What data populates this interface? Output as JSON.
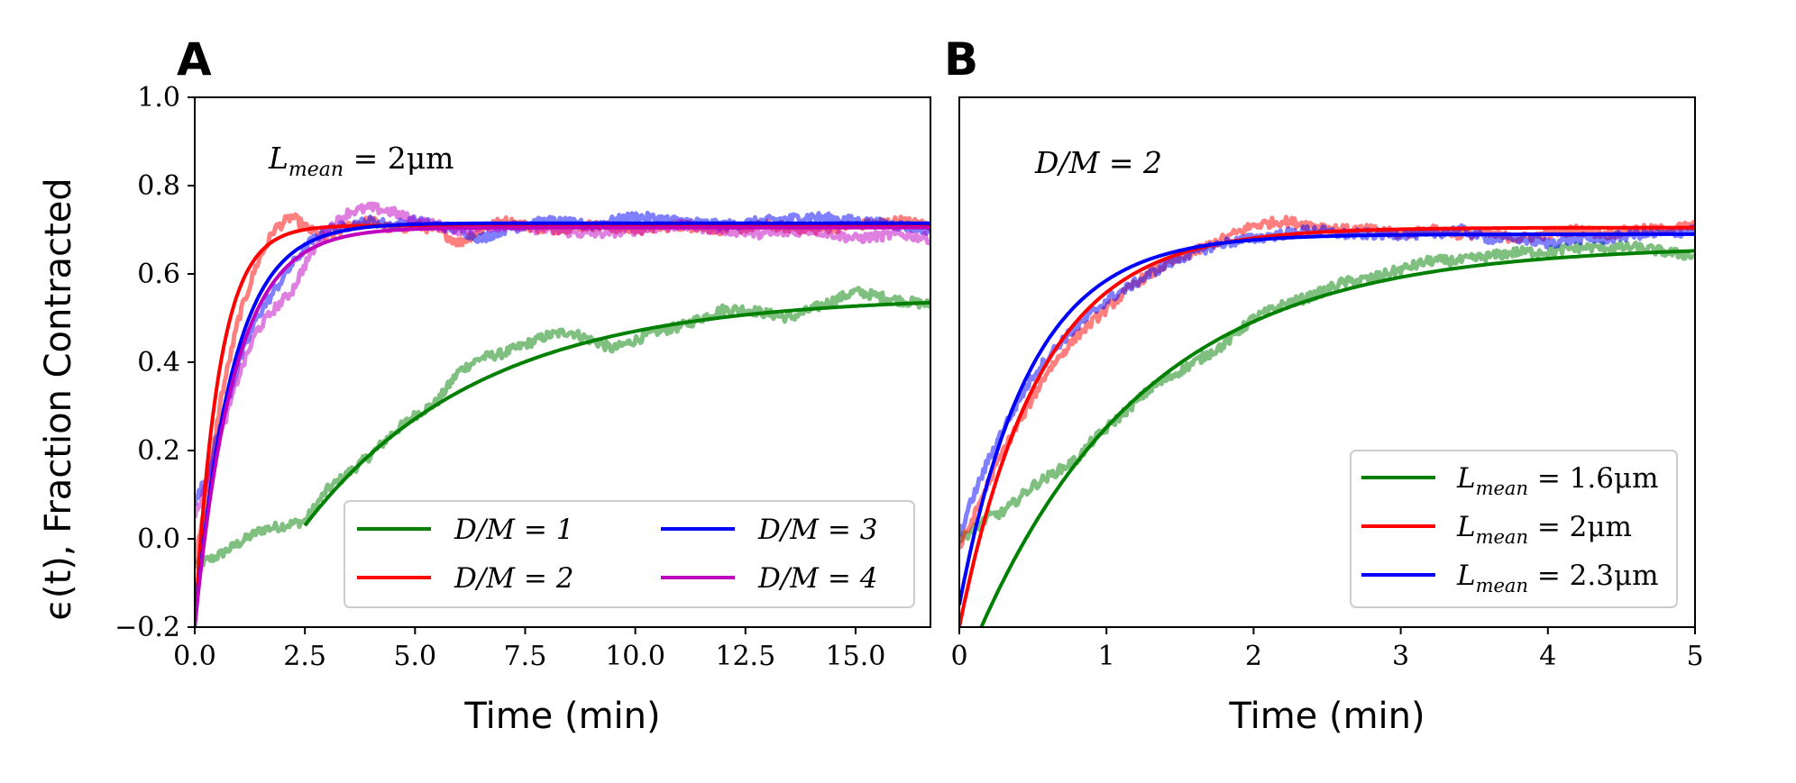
{
  "ylabel": "ϵ(t), Fraction Contracted",
  "chart_data": [
    {
      "panel": "A",
      "type": "line",
      "xlabel": "Time (min)",
      "xlim": [
        0,
        16.7
      ],
      "ylim": [
        -0.2,
        1.0
      ],
      "xticks": [
        "0.0",
        "2.5",
        "5.0",
        "7.5",
        "10.0",
        "12.5",
        "15.0"
      ],
      "xtick_values": [
        0,
        2.5,
        5,
        7.5,
        10,
        12.5,
        15
      ],
      "yticks": [
        "−0.2",
        "0.0",
        "0.2",
        "0.4",
        "0.6",
        "0.8",
        "1.0"
      ],
      "ytick_values": [
        -0.2,
        0,
        0.2,
        0.4,
        0.6,
        0.8,
        1.0
      ],
      "annotation": "L_mean = 2μm",
      "annotation_main": "L",
      "annotation_sub": "mean",
      "annotation_rest": " = 2μm",
      "legend_position": "lower-right",
      "legend_columns": 2,
      "series": [
        {
          "name": "D/M = 1",
          "color": "#008000",
          "fit": {
            "start": 2.5,
            "y0": 0.03,
            "plateau": 0.55,
            "tau": 4.0
          },
          "data_points": [
            [
              0,
              -0.06
            ],
            [
              0.5,
              -0.04
            ],
            [
              1.0,
              -0.01
            ],
            [
              1.5,
              0.02
            ],
            [
              2.0,
              0.03
            ],
            [
              2.5,
              0.04
            ],
            [
              3.0,
              0.11
            ],
            [
              3.5,
              0.15
            ],
            [
              4.0,
              0.19
            ],
            [
              4.5,
              0.24
            ],
            [
              5.0,
              0.28
            ],
            [
              5.5,
              0.31
            ],
            [
              6.0,
              0.38
            ],
            [
              6.5,
              0.41
            ],
            [
              7.0,
              0.42
            ],
            [
              7.5,
              0.44
            ],
            [
              8.0,
              0.46
            ],
            [
              8.5,
              0.47
            ],
            [
              9.0,
              0.45
            ],
            [
              9.5,
              0.43
            ],
            [
              10.0,
              0.45
            ],
            [
              10.5,
              0.47
            ],
            [
              11.0,
              0.48
            ],
            [
              11.5,
              0.5
            ],
            [
              12.0,
              0.52
            ],
            [
              12.5,
              0.52
            ],
            [
              13.0,
              0.51
            ],
            [
              13.5,
              0.5
            ],
            [
              14.0,
              0.52
            ],
            [
              14.5,
              0.54
            ],
            [
              15.0,
              0.56
            ],
            [
              15.5,
              0.55
            ],
            [
              16.0,
              0.54
            ],
            [
              16.7,
              0.53
            ]
          ]
        },
        {
          "name": "D/M = 2",
          "color": "#ff0000",
          "fit": {
            "start": 0,
            "y0": -0.2,
            "plateau": 0.71,
            "tau": 0.55
          },
          "data_points": [
            [
              0,
              -0.05
            ],
            [
              0.3,
              0.12
            ],
            [
              0.6,
              0.32
            ],
            [
              1.0,
              0.5
            ],
            [
              1.4,
              0.62
            ],
            [
              1.8,
              0.7
            ],
            [
              2.2,
              0.73
            ],
            [
              2.6,
              0.7
            ],
            [
              3.0,
              0.68
            ],
            [
              3.5,
              0.71
            ],
            [
              4.0,
              0.72
            ],
            [
              4.5,
              0.7
            ],
            [
              5.0,
              0.71
            ],
            [
              5.5,
              0.7
            ],
            [
              6.0,
              0.67
            ],
            [
              6.5,
              0.7
            ],
            [
              7.0,
              0.72
            ],
            [
              7.5,
              0.71
            ],
            [
              8.0,
              0.7
            ],
            [
              9.0,
              0.71
            ],
            [
              10.0,
              0.7
            ],
            [
              11.0,
              0.71
            ],
            [
              12.0,
              0.7
            ],
            [
              13.0,
              0.71
            ],
            [
              14.0,
              0.7
            ],
            [
              15.0,
              0.71
            ],
            [
              16.0,
              0.72
            ],
            [
              16.7,
              0.71
            ]
          ]
        },
        {
          "name": "D/M = 3",
          "color": "#0000ff",
          "fit": {
            "start": 0,
            "y0": -0.2,
            "plateau": 0.715,
            "tau": 0.85
          },
          "data_points": [
            [
              0,
              0.08
            ],
            [
              0.3,
              0.15
            ],
            [
              0.6,
              0.26
            ],
            [
              1.0,
              0.4
            ],
            [
              1.4,
              0.5
            ],
            [
              1.8,
              0.56
            ],
            [
              2.2,
              0.62
            ],
            [
              2.6,
              0.67
            ],
            [
              3.0,
              0.7
            ],
            [
              3.5,
              0.71
            ],
            [
              4.0,
              0.72
            ],
            [
              4.5,
              0.71
            ],
            [
              5.0,
              0.72
            ],
            [
              6.0,
              0.7
            ],
            [
              6.5,
              0.68
            ],
            [
              7.0,
              0.7
            ],
            [
              7.5,
              0.71
            ],
            [
              8.0,
              0.72
            ],
            [
              9.0,
              0.71
            ],
            [
              10.0,
              0.73
            ],
            [
              11.0,
              0.72
            ],
            [
              12.0,
              0.71
            ],
            [
              13.0,
              0.72
            ],
            [
              14.0,
              0.73
            ],
            [
              15.0,
              0.72
            ],
            [
              16.0,
              0.71
            ],
            [
              16.7,
              0.7
            ]
          ]
        },
        {
          "name": "D/M = 4",
          "color": "#bf00bf",
          "fit": {
            "start": 0,
            "y0": -0.2,
            "plateau": 0.705,
            "tau": 0.9
          },
          "data_points": [
            [
              0,
              0.05
            ],
            [
              0.3,
              0.13
            ],
            [
              0.6,
              0.24
            ],
            [
              1.0,
              0.37
            ],
            [
              1.4,
              0.47
            ],
            [
              1.8,
              0.52
            ],
            [
              2.2,
              0.56
            ],
            [
              2.6,
              0.64
            ],
            [
              3.0,
              0.7
            ],
            [
              3.5,
              0.74
            ],
            [
              4.0,
              0.75
            ],
            [
              4.5,
              0.74
            ],
            [
              5.0,
              0.72
            ],
            [
              5.5,
              0.71
            ],
            [
              6.0,
              0.7
            ],
            [
              7.0,
              0.71
            ],
            [
              8.0,
              0.7
            ],
            [
              9.0,
              0.69
            ],
            [
              10.0,
              0.7
            ],
            [
              11.0,
              0.71
            ],
            [
              12.0,
              0.7
            ],
            [
              13.0,
              0.69
            ],
            [
              14.0,
              0.7
            ],
            [
              15.0,
              0.68
            ],
            [
              16.0,
              0.69
            ],
            [
              16.7,
              0.68
            ]
          ]
        }
      ]
    },
    {
      "panel": "B",
      "type": "line",
      "xlabel": "Time (min)",
      "xlim": [
        0,
        5
      ],
      "ylim": [
        -0.2,
        1.0
      ],
      "xticks": [
        "0",
        "1",
        "2",
        "3",
        "4",
        "5"
      ],
      "xtick_values": [
        0,
        1,
        2,
        3,
        4,
        5
      ],
      "annotation": "D/M = 2",
      "legend_position": "lower-right",
      "legend_columns": 1,
      "series": [
        {
          "name": "L_mean = 1.6μm",
          "label_main": "L",
          "label_sub": "mean",
          "label_rest": " = 1.6μm",
          "color": "#008000",
          "fit": {
            "start": 0,
            "y0": -0.32,
            "plateau": 0.665,
            "tau": 1.15
          },
          "data_points": [
            [
              0,
              0.0
            ],
            [
              0.1,
              0.02
            ],
            [
              0.2,
              0.05
            ],
            [
              0.3,
              0.06
            ],
            [
              0.4,
              0.09
            ],
            [
              0.5,
              0.12
            ],
            [
              0.6,
              0.14
            ],
            [
              0.7,
              0.16
            ],
            [
              0.8,
              0.18
            ],
            [
              0.9,
              0.22
            ],
            [
              1.0,
              0.25
            ],
            [
              1.1,
              0.28
            ],
            [
              1.2,
              0.31
            ],
            [
              1.3,
              0.34
            ],
            [
              1.4,
              0.36
            ],
            [
              1.5,
              0.38
            ],
            [
              1.6,
              0.4
            ],
            [
              1.7,
              0.42
            ],
            [
              1.8,
              0.44
            ],
            [
              1.9,
              0.47
            ],
            [
              2.0,
              0.5
            ],
            [
              2.2,
              0.53
            ],
            [
              2.4,
              0.55
            ],
            [
              2.6,
              0.58
            ],
            [
              2.8,
              0.59
            ],
            [
              3.0,
              0.61
            ],
            [
              3.2,
              0.63
            ],
            [
              3.4,
              0.63
            ],
            [
              3.6,
              0.64
            ],
            [
              3.8,
              0.65
            ],
            [
              4.0,
              0.65
            ],
            [
              4.2,
              0.66
            ],
            [
              4.4,
              0.66
            ],
            [
              4.6,
              0.66
            ],
            [
              4.8,
              0.65
            ],
            [
              5.0,
              0.64
            ]
          ]
        },
        {
          "name": "L_mean = 2μm",
          "label_main": "L",
          "label_sub": "mean",
          "label_rest": " = 2μm",
          "color": "#ff0000",
          "fit": {
            "start": 0,
            "y0": -0.2,
            "plateau": 0.705,
            "tau": 0.55
          },
          "data_points": [
            [
              0,
              -0.02
            ],
            [
              0.1,
              0.05
            ],
            [
              0.2,
              0.13
            ],
            [
              0.3,
              0.2
            ],
            [
              0.4,
              0.26
            ],
            [
              0.5,
              0.32
            ],
            [
              0.6,
              0.38
            ],
            [
              0.7,
              0.42
            ],
            [
              0.8,
              0.46
            ],
            [
              0.9,
              0.49
            ],
            [
              1.0,
              0.52
            ],
            [
              1.2,
              0.58
            ],
            [
              1.4,
              0.62
            ],
            [
              1.6,
              0.65
            ],
            [
              1.8,
              0.68
            ],
            [
              2.0,
              0.71
            ],
            [
              2.2,
              0.72
            ],
            [
              2.4,
              0.71
            ],
            [
              2.6,
              0.7
            ],
            [
              2.8,
              0.7
            ],
            [
              3.0,
              0.69
            ],
            [
              3.2,
              0.7
            ],
            [
              3.4,
              0.69
            ],
            [
              3.6,
              0.69
            ],
            [
              3.8,
              0.68
            ],
            [
              4.0,
              0.69
            ],
            [
              4.2,
              0.7
            ],
            [
              4.4,
              0.69
            ],
            [
              4.6,
              0.7
            ],
            [
              4.8,
              0.7
            ],
            [
              5.0,
              0.71
            ]
          ]
        },
        {
          "name": "L_mean = 2.3μm",
          "label_main": "L",
          "label_sub": "mean",
          "label_rest": " = 2.3μm",
          "color": "#0000ff",
          "fit": {
            "start": 0,
            "y0": -0.15,
            "plateau": 0.69,
            "tau": 0.48
          },
          "data_points": [
            [
              0,
              0.01
            ],
            [
              0.1,
              0.1
            ],
            [
              0.2,
              0.18
            ],
            [
              0.3,
              0.25
            ],
            [
              0.4,
              0.31
            ],
            [
              0.5,
              0.37
            ],
            [
              0.6,
              0.41
            ],
            [
              0.7,
              0.45
            ],
            [
              0.8,
              0.48
            ],
            [
              0.9,
              0.51
            ],
            [
              1.0,
              0.54
            ],
            [
              1.2,
              0.58
            ],
            [
              1.4,
              0.62
            ],
            [
              1.6,
              0.65
            ],
            [
              1.8,
              0.67
            ],
            [
              2.0,
              0.68
            ],
            [
              2.2,
              0.69
            ],
            [
              2.4,
              0.7
            ],
            [
              2.6,
              0.69
            ],
            [
              2.8,
              0.69
            ],
            [
              3.0,
              0.69
            ],
            [
              3.2,
              0.69
            ],
            [
              3.4,
              0.7
            ],
            [
              3.6,
              0.68
            ],
            [
              3.8,
              0.68
            ],
            [
              4.0,
              0.67
            ],
            [
              4.2,
              0.68
            ],
            [
              4.4,
              0.68
            ],
            [
              4.6,
              0.69
            ],
            [
              4.8,
              0.69
            ],
            [
              5.0,
              0.7
            ]
          ]
        }
      ]
    }
  ]
}
